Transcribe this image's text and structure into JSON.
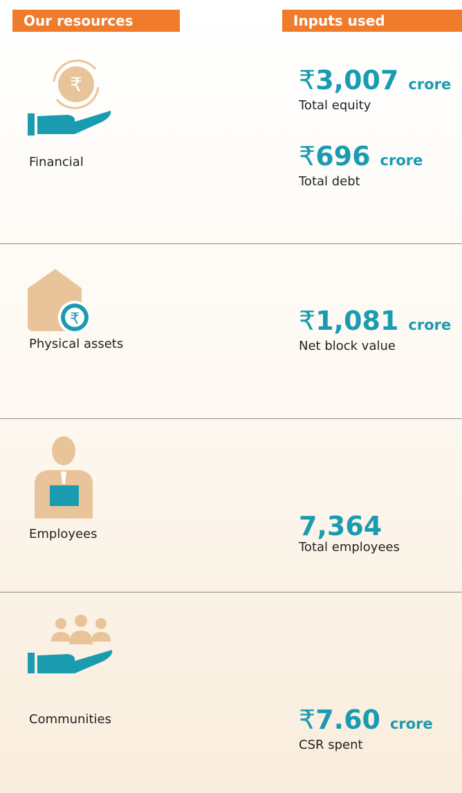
{
  "header": {
    "left": "Our resources",
    "right": "Inputs used"
  },
  "rows": [
    {
      "label": "Financial",
      "items": [
        {
          "currency": "₹",
          "amount": "3,007",
          "unit": "crore",
          "caption": "Total equity"
        },
        {
          "currency": "₹",
          "amount": "696",
          "unit": "crore",
          "caption": "Total debt"
        }
      ]
    },
    {
      "label": "Physical assets",
      "items": [
        {
          "currency": "₹",
          "amount": "1,081",
          "unit": "crore",
          "caption": "Net block value"
        }
      ]
    },
    {
      "label": "Employees",
      "items": [
        {
          "amount": "7,364",
          "caption": "Total employees"
        }
      ]
    },
    {
      "label": "Communities",
      "items": [
        {
          "currency": "₹",
          "amount": "7.60",
          "unit": "crore",
          "caption": "CSR spent"
        }
      ]
    }
  ]
}
